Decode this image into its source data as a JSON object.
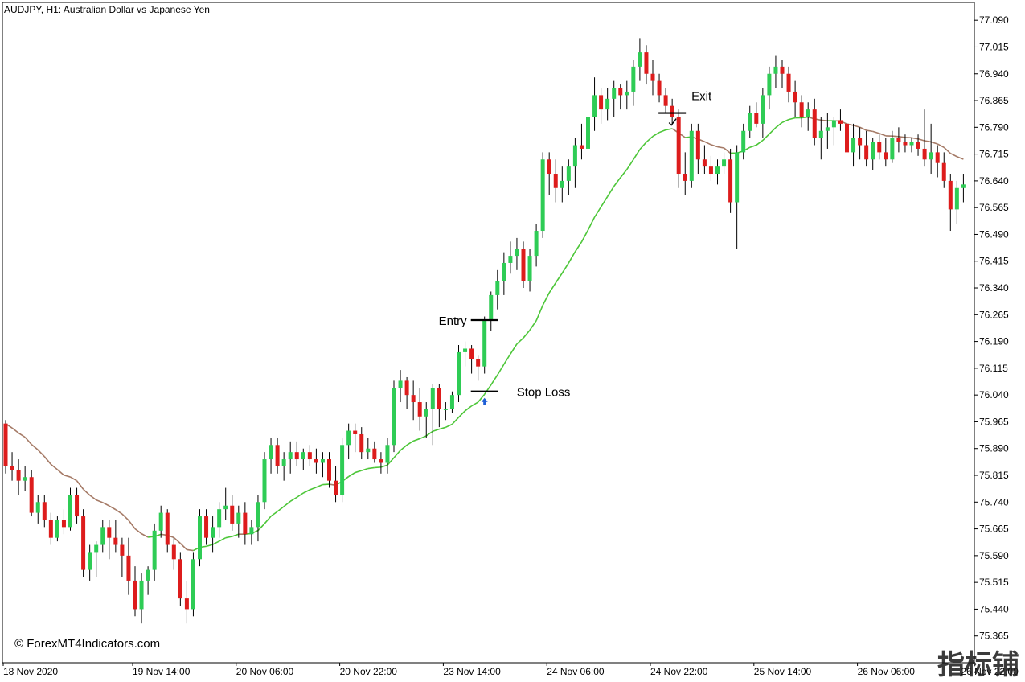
{
  "header": {
    "title": "AUDJPY, H1:  Australian Dollar vs Japanese Yen"
  },
  "watermark": "© ForexMT4Indicators.com",
  "corner_mark": "指标铺",
  "colors": {
    "background": "#ffffff",
    "bull_body": "#2ecc55",
    "bear_body": "#dd1c1c",
    "wick": "#000000",
    "ma_up": "#4cc638",
    "ma_down": "#a57a66",
    "signal_arrow": "#1f5fd6",
    "grid": "none"
  },
  "chart_data": {
    "type": "candlestick",
    "symbol": "AUDJPY",
    "timeframe": "H1",
    "title": "AUDJPY, H1:  Australian Dollar vs Japanese Yen",
    "grid": false,
    "ylim": [
      75.29,
      77.14
    ],
    "y_ticks": [
      "77.090",
      "77.015",
      "76.940",
      "76.865",
      "76.790",
      "76.715",
      "76.640",
      "76.565",
      "76.490",
      "76.415",
      "76.340",
      "76.265",
      "76.190",
      "76.115",
      "76.040",
      "75.965",
      "75.890",
      "75.815",
      "75.740",
      "75.665",
      "75.590",
      "75.515",
      "75.440",
      "75.365"
    ],
    "x_ticks": [
      {
        "label": "18 Nov 2020",
        "bar": 0
      },
      {
        "label": "19 Nov 14:00",
        "bar": 20
      },
      {
        "label": "20 Nov 06:00",
        "bar": 36
      },
      {
        "label": "20 Nov 22:00",
        "bar": 52
      },
      {
        "label": "23 Nov 14:00",
        "bar": 68
      },
      {
        "label": "24 Nov 06:00",
        "bar": 84
      },
      {
        "label": "24 Nov 22:00",
        "bar": 100
      },
      {
        "label": "25 Nov 14:00",
        "bar": 116
      },
      {
        "label": "26 Nov 06:00",
        "bar": 132
      },
      {
        "label": "26 Nov 22:00",
        "bar": 148
      }
    ],
    "candles": [
      [
        75.96,
        75.97,
        75.82,
        75.84
      ],
      [
        75.84,
        75.88,
        75.8,
        75.83
      ],
      [
        75.83,
        75.86,
        75.76,
        75.8
      ],
      [
        75.8,
        75.84,
        75.77,
        75.81
      ],
      [
        75.81,
        75.83,
        75.7,
        75.71
      ],
      [
        75.71,
        75.76,
        75.68,
        75.74
      ],
      [
        75.74,
        75.76,
        75.67,
        75.69
      ],
      [
        75.69,
        75.71,
        75.62,
        75.64
      ],
      [
        75.64,
        75.7,
        75.63,
        75.69
      ],
      [
        75.69,
        75.72,
        75.65,
        75.67
      ],
      [
        75.67,
        75.78,
        75.66,
        75.76
      ],
      [
        75.76,
        75.78,
        75.68,
        75.7
      ],
      [
        75.7,
        75.72,
        75.53,
        75.55
      ],
      [
        75.55,
        75.62,
        75.52,
        75.6
      ],
      [
        75.6,
        75.63,
        75.53,
        75.62
      ],
      [
        75.62,
        75.69,
        75.6,
        75.67
      ],
      [
        75.67,
        75.69,
        75.58,
        75.64
      ],
      [
        75.64,
        75.69,
        75.6,
        75.62
      ],
      [
        75.62,
        75.64,
        75.53,
        75.59
      ],
      [
        75.59,
        75.64,
        75.48,
        75.52
      ],
      [
        75.52,
        75.56,
        75.42,
        75.44
      ],
      [
        75.44,
        75.54,
        75.4,
        75.52
      ],
      [
        75.52,
        75.56,
        75.48,
        75.55
      ],
      [
        75.55,
        75.68,
        75.52,
        75.66
      ],
      [
        75.66,
        75.73,
        75.64,
        75.71
      ],
      [
        75.71,
        75.72,
        75.6,
        75.62
      ],
      [
        75.62,
        75.64,
        75.55,
        75.58
      ],
      [
        75.58,
        75.6,
        75.45,
        75.47
      ],
      [
        75.47,
        75.52,
        75.4,
        75.44
      ],
      [
        75.44,
        75.6,
        75.42,
        75.58
      ],
      [
        75.58,
        75.72,
        75.56,
        75.7
      ],
      [
        75.7,
        75.72,
        75.62,
        75.64
      ],
      [
        75.64,
        75.7,
        75.6,
        75.67
      ],
      [
        75.67,
        75.74,
        75.64,
        75.72
      ],
      [
        75.72,
        75.78,
        75.69,
        75.73
      ],
      [
        75.73,
        75.76,
        75.66,
        75.68
      ],
      [
        75.68,
        75.73,
        75.64,
        75.71
      ],
      [
        75.71,
        75.74,
        75.62,
        75.65
      ],
      [
        75.65,
        75.69,
        75.62,
        75.67
      ],
      [
        75.67,
        75.76,
        75.63,
        75.74
      ],
      [
        75.74,
        75.88,
        75.72,
        75.86
      ],
      [
        75.86,
        75.92,
        75.82,
        75.9
      ],
      [
        75.9,
        75.92,
        75.82,
        75.84
      ],
      [
        75.84,
        75.88,
        75.8,
        75.86
      ],
      [
        75.86,
        75.91,
        75.82,
        75.88
      ],
      [
        75.88,
        75.91,
        75.84,
        75.86
      ],
      [
        75.86,
        75.89,
        75.83,
        75.88
      ],
      [
        75.88,
        75.9,
        75.84,
        75.86
      ],
      [
        75.86,
        75.89,
        75.82,
        75.85
      ],
      [
        75.85,
        75.88,
        75.81,
        75.86
      ],
      [
        75.86,
        75.88,
        75.78,
        75.8
      ],
      [
        75.8,
        75.84,
        75.74,
        75.76
      ],
      [
        75.76,
        75.92,
        75.74,
        75.9
      ],
      [
        75.9,
        75.96,
        75.86,
        75.94
      ],
      [
        75.94,
        75.96,
        75.88,
        75.93
      ],
      [
        75.93,
        75.95,
        75.86,
        75.88
      ],
      [
        75.88,
        75.92,
        75.86,
        75.89
      ],
      [
        75.89,
        75.91,
        75.85,
        75.86
      ],
      [
        75.86,
        75.88,
        75.82,
        75.85
      ],
      [
        75.85,
        75.92,
        75.82,
        75.9
      ],
      [
        75.9,
        76.08,
        75.88,
        76.06
      ],
      [
        76.06,
        76.11,
        76.02,
        76.08
      ],
      [
        76.08,
        76.09,
        76.0,
        76.04
      ],
      [
        76.04,
        76.08,
        75.97,
        76.02
      ],
      [
        76.02,
        76.06,
        75.94,
        75.98
      ],
      [
        75.98,
        76.02,
        75.92,
        76.0
      ],
      [
        76.0,
        76.07,
        75.9,
        76.06
      ],
      [
        76.06,
        76.07,
        75.95,
        76.0
      ],
      [
        76.0,
        76.02,
        75.97,
        76.0
      ],
      [
        76.0,
        76.05,
        75.99,
        76.04
      ],
      [
        76.04,
        76.18,
        76.02,
        76.16
      ],
      [
        76.16,
        76.19,
        76.12,
        76.17
      ],
      [
        76.17,
        76.18,
        76.1,
        76.14
      ],
      [
        76.14,
        76.15,
        76.08,
        76.12
      ],
      [
        76.12,
        76.26,
        76.1,
        76.25
      ],
      [
        76.25,
        76.33,
        76.22,
        76.32
      ],
      [
        76.32,
        76.39,
        76.28,
        76.36
      ],
      [
        76.36,
        76.44,
        76.32,
        76.41
      ],
      [
        76.41,
        76.47,
        76.38,
        76.43
      ],
      [
        76.43,
        76.48,
        76.39,
        76.45
      ],
      [
        76.45,
        76.47,
        76.34,
        76.36
      ],
      [
        76.36,
        76.45,
        76.33,
        76.43
      ],
      [
        76.43,
        76.52,
        76.4,
        76.5
      ],
      [
        76.5,
        76.72,
        76.48,
        76.7
      ],
      [
        76.7,
        76.72,
        76.6,
        76.66
      ],
      [
        76.66,
        76.7,
        76.58,
        76.62
      ],
      [
        76.62,
        76.68,
        76.58,
        76.64
      ],
      [
        76.64,
        76.7,
        76.6,
        76.68
      ],
      [
        76.68,
        76.76,
        76.62,
        76.74
      ],
      [
        76.74,
        76.8,
        76.7,
        76.73
      ],
      [
        76.73,
        76.84,
        76.7,
        76.82
      ],
      [
        76.82,
        76.93,
        76.78,
        76.88
      ],
      [
        76.88,
        76.9,
        76.8,
        76.84
      ],
      [
        76.84,
        76.9,
        76.81,
        76.87
      ],
      [
        76.87,
        76.92,
        76.82,
        76.9
      ],
      [
        76.9,
        76.91,
        76.84,
        76.88
      ],
      [
        76.88,
        76.92,
        76.84,
        76.89
      ],
      [
        76.89,
        76.98,
        76.85,
        76.96
      ],
      [
        76.96,
        77.04,
        76.92,
        77.0
      ],
      [
        77.0,
        77.02,
        76.91,
        76.94
      ],
      [
        76.94,
        76.98,
        76.88,
        76.92
      ],
      [
        76.92,
        76.94,
        76.86,
        76.88
      ],
      [
        76.88,
        76.9,
        76.83,
        76.85
      ],
      [
        76.85,
        76.87,
        76.8,
        76.82
      ],
      [
        76.82,
        76.84,
        76.62,
        76.66
      ],
      [
        76.66,
        76.72,
        76.6,
        76.64
      ],
      [
        76.64,
        76.8,
        76.62,
        76.78
      ],
      [
        76.78,
        76.8,
        76.66,
        76.7
      ],
      [
        76.7,
        76.74,
        76.66,
        76.68
      ],
      [
        76.68,
        76.71,
        76.64,
        76.66
      ],
      [
        76.66,
        76.7,
        76.63,
        76.68
      ],
      [
        76.68,
        76.72,
        76.66,
        76.7
      ],
      [
        76.7,
        76.73,
        76.55,
        76.58
      ],
      [
        76.58,
        76.74,
        76.45,
        76.72
      ],
      [
        76.72,
        76.8,
        76.7,
        76.78
      ],
      [
        76.78,
        76.85,
        76.76,
        76.83
      ],
      [
        76.83,
        76.86,
        76.79,
        76.8
      ],
      [
        76.8,
        76.9,
        76.76,
        76.88
      ],
      [
        76.88,
        76.96,
        76.84,
        76.94
      ],
      [
        76.94,
        76.99,
        76.9,
        76.96
      ],
      [
        76.96,
        76.98,
        76.9,
        76.94
      ],
      [
        76.94,
        76.96,
        76.86,
        76.89
      ],
      [
        76.89,
        76.92,
        76.82,
        76.86
      ],
      [
        76.86,
        76.88,
        76.79,
        76.82
      ],
      [
        76.82,
        76.86,
        76.78,
        76.84
      ],
      [
        76.84,
        76.87,
        76.74,
        76.76
      ],
      [
        76.76,
        76.82,
        76.7,
        76.78
      ],
      [
        76.78,
        76.83,
        76.73,
        76.79
      ],
      [
        76.79,
        76.82,
        76.74,
        76.81
      ],
      [
        76.81,
        76.84,
        76.78,
        76.8
      ],
      [
        76.8,
        76.82,
        76.7,
        76.72
      ],
      [
        76.72,
        76.8,
        76.68,
        76.76
      ],
      [
        76.76,
        76.79,
        76.7,
        76.74
      ],
      [
        76.74,
        76.78,
        76.68,
        76.7
      ],
      [
        76.7,
        76.76,
        76.67,
        76.75
      ],
      [
        76.75,
        76.77,
        76.7,
        76.72
      ],
      [
        76.72,
        76.76,
        76.68,
        76.7
      ],
      [
        76.7,
        76.78,
        76.69,
        76.76
      ],
      [
        76.76,
        76.79,
        76.72,
        76.75
      ],
      [
        76.75,
        76.77,
        76.72,
        76.74
      ],
      [
        76.74,
        76.76,
        76.72,
        76.75
      ],
      [
        76.75,
        76.77,
        76.71,
        76.73
      ],
      [
        76.73,
        76.84,
        76.68,
        76.7
      ],
      [
        76.7,
        76.8,
        76.66,
        76.72
      ],
      [
        76.72,
        76.74,
        76.65,
        76.69
      ],
      [
        76.69,
        76.72,
        76.62,
        76.64
      ],
      [
        76.64,
        76.66,
        76.5,
        76.56
      ],
      [
        76.56,
        76.64,
        76.52,
        76.62
      ],
      [
        76.62,
        76.66,
        76.58,
        76.63
      ]
    ],
    "ma_end_bar": 150,
    "annotations": [
      {
        "text": "Entry",
        "bar": 74,
        "price": 76.25
      },
      {
        "text": "Stop Loss",
        "bar": 74,
        "price": 76.05
      },
      {
        "text": "Exit",
        "bar": 103,
        "price": 76.83
      }
    ]
  }
}
